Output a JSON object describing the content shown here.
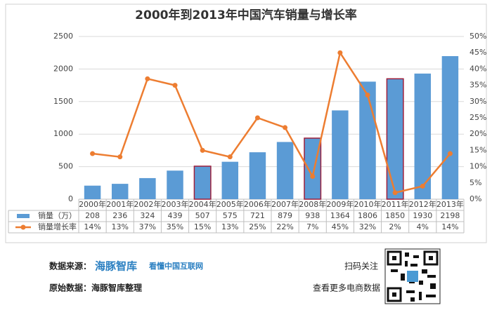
{
  "chart_data": {
    "type": "bar",
    "title": "2000年到2013年中国汽车销量与增长率",
    "categories": [
      "2000年",
      "2001年",
      "2002年",
      "2003年",
      "2004年",
      "2005年",
      "2006年",
      "2007年",
      "2008年",
      "2009年",
      "2010年",
      "2011年",
      "2012年",
      "2013年"
    ],
    "series": [
      {
        "name": "销量（万）",
        "type": "bar",
        "color": "#5b9bd5",
        "values": [
          208,
          236,
          324,
          439,
          507,
          575,
          721,
          879,
          938,
          1364,
          1806,
          1850,
          1930,
          2198
        ]
      },
      {
        "name": "销量增长率",
        "type": "line",
        "axis": "y2",
        "color": "#ed7d31",
        "values": [
          14,
          13,
          37,
          35,
          15,
          13,
          25,
          22,
          7,
          45,
          32,
          2,
          4,
          14
        ],
        "value_labels": [
          "14%",
          "13%",
          "37%",
          "35%",
          "15%",
          "13%",
          "25%",
          "22%",
          "7%",
          "45%",
          "32%",
          "2%",
          "4%",
          "14%"
        ]
      }
    ],
    "ylim": [
      0,
      2500
    ],
    "yticks": [
      0,
      500,
      1000,
      1500,
      2000,
      2500
    ],
    "y2lim": [
      0,
      50
    ],
    "y2ticks": [
      {
        "value": 0,
        "label": "0%"
      },
      {
        "value": 5,
        "label": "5%"
      },
      {
        "value": 10,
        "label": "10%"
      },
      {
        "value": 15,
        "label": "15%"
      },
      {
        "value": 20,
        "label": "20%"
      },
      {
        "value": 25,
        "label": "25%"
      },
      {
        "value": 30,
        "label": "30%"
      },
      {
        "value": 35,
        "label": "35%"
      },
      {
        "value": 40,
        "label": "40%"
      },
      {
        "value": 45,
        "label": "45%"
      },
      {
        "value": 50,
        "label": "50%"
      }
    ],
    "grid": true,
    "highlight": {
      "categories": [
        "2004年",
        "2008年",
        "2011年"
      ],
      "color": "#9e1f3c"
    }
  },
  "footer": {
    "source_label": "数据来源：",
    "brand": "海豚智库",
    "slogan": "看懂中国互联网",
    "raw_data": "原始数据：海豚智库整理",
    "scan": "扫码关注",
    "more": "查看更多电商数据"
  }
}
